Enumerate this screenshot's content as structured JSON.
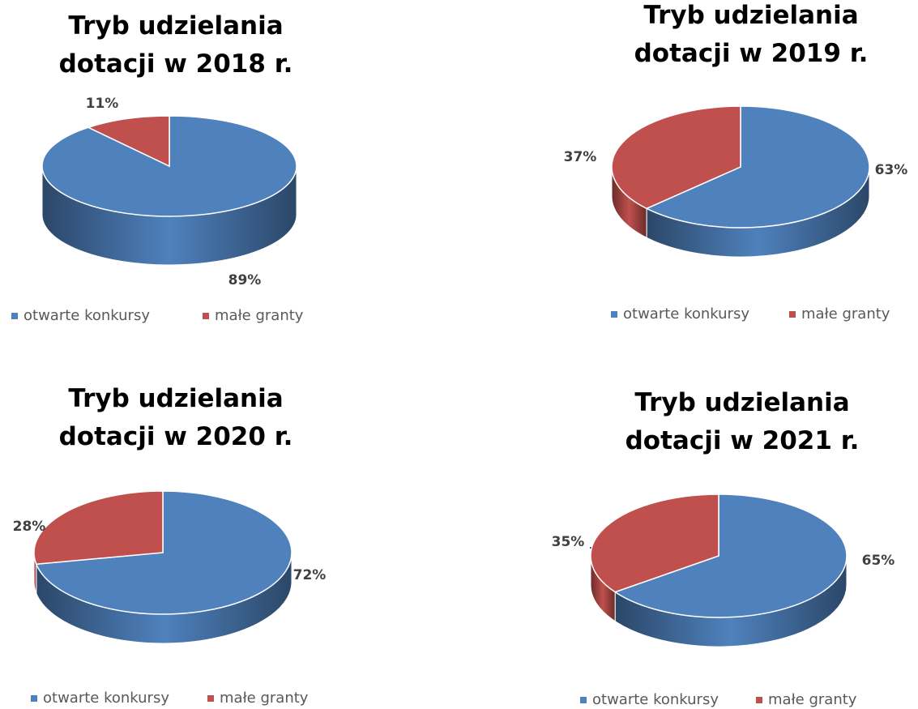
{
  "chart_data": [
    {
      "type": "pie",
      "title": "Tryb udzielania dotacji w 2018 r.",
      "categories": [
        "otwarte konkursy",
        "małe granty"
      ],
      "values": [
        89,
        11
      ],
      "value_labels": [
        "89%",
        "11%"
      ],
      "colors": [
        "#4f81bd",
        "#c0504d"
      ],
      "legend": "bottom"
    },
    {
      "type": "pie",
      "title": "Tryb udzielania dotacji w 2019 r.",
      "categories": [
        "otwarte konkursy",
        "małe granty"
      ],
      "values": [
        63,
        37
      ],
      "value_labels": [
        "63%",
        "37%"
      ],
      "colors": [
        "#4f81bd",
        "#c0504d"
      ],
      "legend": "bottom"
    },
    {
      "type": "pie",
      "title": "Tryb udzielania dotacji w 2020 r.",
      "categories": [
        "otwarte konkursy",
        "małe granty"
      ],
      "values": [
        72,
        28
      ],
      "value_labels": [
        "72%",
        "28%"
      ],
      "colors": [
        "#4f81bd",
        "#c0504d"
      ],
      "legend": "bottom"
    },
    {
      "type": "pie",
      "title": "Tryb udzielania dotacji w 2021 r.",
      "categories": [
        "otwarte konkursy",
        "małe granty"
      ],
      "values": [
        65,
        35
      ],
      "value_labels": [
        "65%",
        "35%"
      ],
      "colors": [
        "#4f81bd",
        "#c0504d"
      ],
      "legend": "bottom"
    }
  ]
}
